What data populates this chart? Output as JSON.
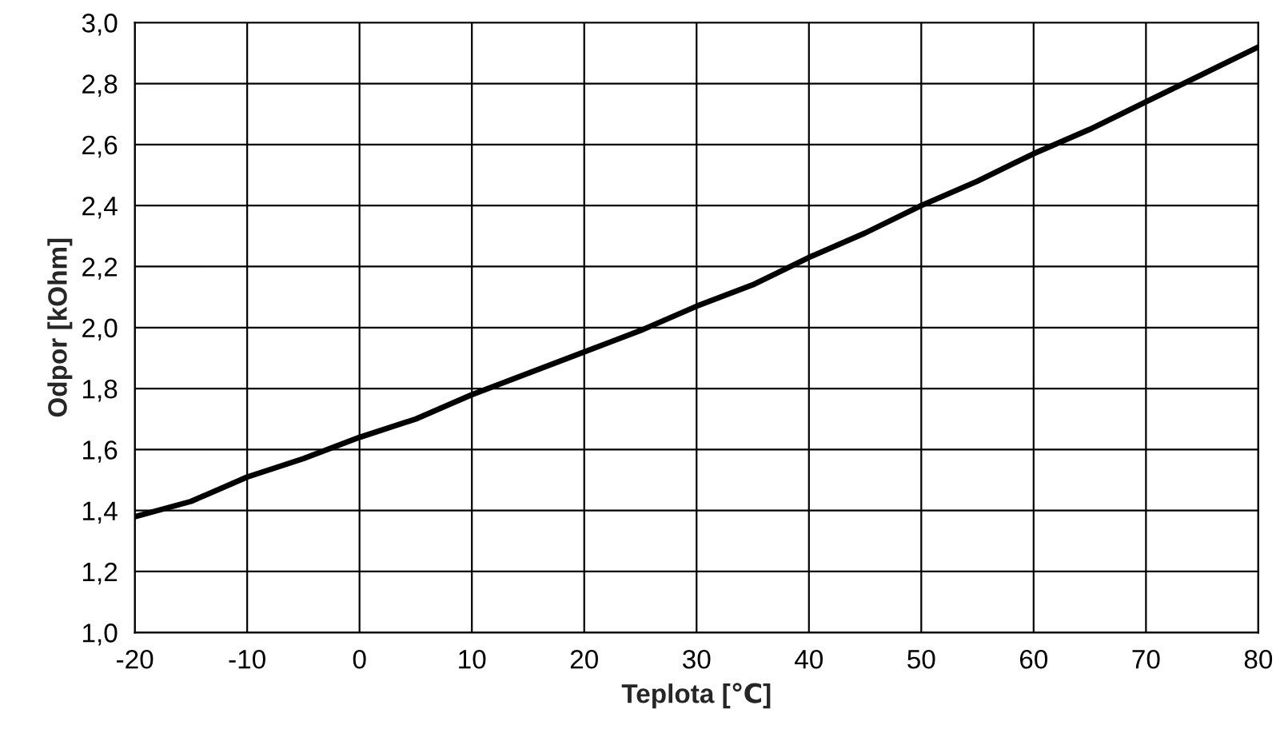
{
  "chart_data": {
    "type": "line",
    "xlabel": "Teplota [℃]",
    "ylabel": "Odpor [kOhm]",
    "x": [
      -20,
      -15,
      -10,
      -5,
      0,
      5,
      10,
      15,
      20,
      25,
      30,
      35,
      40,
      45,
      50,
      55,
      60,
      65,
      70,
      75,
      80
    ],
    "series": [
      {
        "color": "#000000",
        "values": [
          1.38,
          1.43,
          1.51,
          1.57,
          1.64,
          1.7,
          1.78,
          1.85,
          1.92,
          1.99,
          2.07,
          2.14,
          2.23,
          2.31,
          2.4,
          2.48,
          2.57,
          2.65,
          2.74,
          2.83,
          2.92
        ]
      }
    ],
    "xlim": [
      -20,
      80
    ],
    "xticks": [
      -20,
      -10,
      0,
      10,
      20,
      30,
      40,
      50,
      60,
      70,
      80
    ],
    "ylim": [
      1.0,
      3.0
    ],
    "yticks": [
      {
        "value": 1.0,
        "label": "1,0"
      },
      {
        "value": 1.2,
        "label": "1,2"
      },
      {
        "value": 1.4,
        "label": "1,4"
      },
      {
        "value": 1.6,
        "label": "1,6"
      },
      {
        "value": 1.8,
        "label": "1,8"
      },
      {
        "value": 2.0,
        "label": "2,0"
      },
      {
        "value": 2.2,
        "label": "2,2"
      },
      {
        "value": 2.4,
        "label": "2,4"
      },
      {
        "value": 2.6,
        "label": "2,6"
      },
      {
        "value": 2.8,
        "label": "2,8"
      },
      {
        "value": 3.0,
        "label": "3,0"
      }
    ],
    "grid": true,
    "marker": "none",
    "line_style": "solid"
  }
}
